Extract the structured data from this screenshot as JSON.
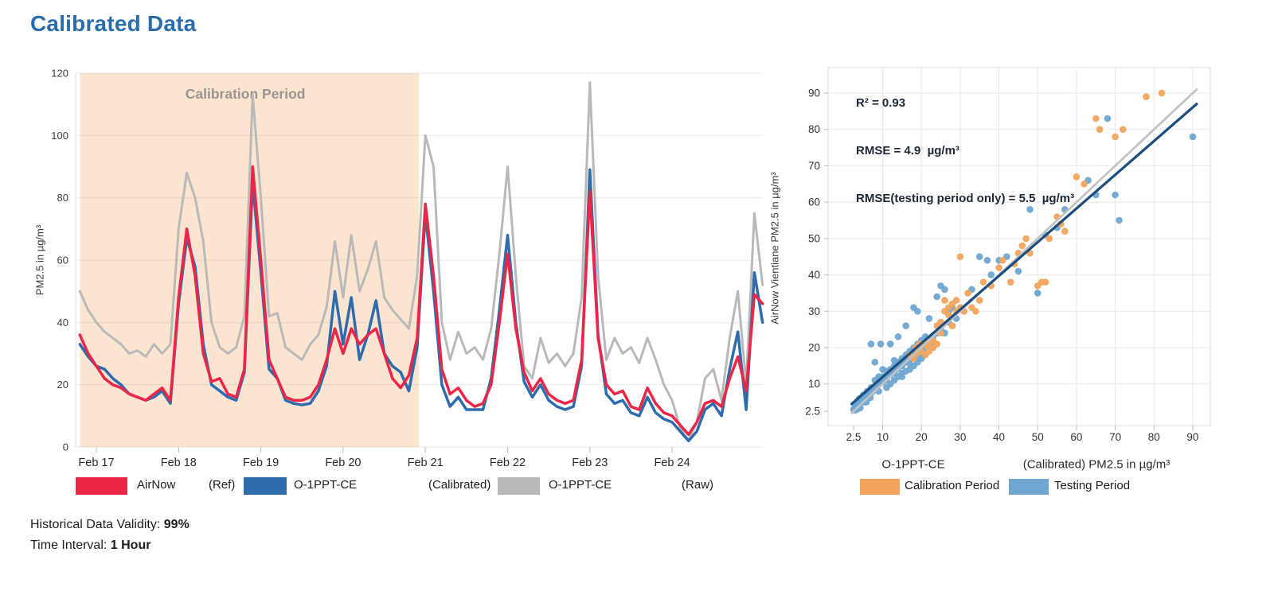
{
  "page": {
    "title": "Calibrated Data"
  },
  "footer": {
    "validity_label": "Historical Data Validity: ",
    "validity_value": "99%",
    "interval_label": "Time Interval: ",
    "interval_value": "1 Hour"
  },
  "legends": {
    "timeseries": {
      "items": [
        {
          "key": "airnow",
          "label": "AirNow",
          "qualifier": "(Ref)",
          "color": "#ed2648"
        },
        {
          "key": "calibrated",
          "label": "O-1PPT-CE",
          "qualifier": "(Calibrated)",
          "color": "#2e6cae"
        },
        {
          "key": "raw",
          "label": "O-1PPT-CE",
          "qualifier": "(Raw)",
          "color": "#b9b9b9"
        }
      ]
    },
    "scatter": {
      "items": [
        {
          "key": "calibration",
          "label": "Calibration Period",
          "color": "#f3a55d"
        },
        {
          "key": "testing",
          "label": "Testing Period",
          "color": "#6fa7d2"
        }
      ]
    }
  },
  "chart_data": [
    {
      "type": "line",
      "title": "",
      "annotation": "Calibration Period",
      "ylabel": "PM2.5 in µg/m³",
      "ylim": [
        0,
        120
      ],
      "yticks": [
        0,
        20,
        40,
        60,
        80,
        100,
        120
      ],
      "xtick_labels": [
        "Feb 17",
        "Feb 18",
        "Feb 19",
        "Feb 20",
        "Feb 21",
        "Feb 22",
        "Feb 23",
        "Feb 24"
      ],
      "xtick_days": [
        0,
        1,
        2,
        3,
        4,
        5,
        6,
        7
      ],
      "x_start_days": -0.2,
      "x_step_days": 0.1,
      "calibration_shade_days": [
        -0.2,
        3.92
      ],
      "shade_color": "#fbe5d1",
      "annotation_color": "#9b958e",
      "grid": true,
      "legend_position": "bottom",
      "series": [
        {
          "key": "raw",
          "name": "O-1PPT-CE (Raw)",
          "color": "#b9b9b9",
          "width": 3,
          "values": [
            50,
            44,
            40,
            37,
            35,
            33,
            30,
            31,
            29,
            33,
            30,
            33,
            70,
            88,
            80,
            66,
            40,
            32,
            30,
            32,
            42,
            113,
            80,
            42,
            43,
            32,
            30,
            28,
            33,
            36,
            45,
            66,
            48,
            68,
            50,
            57,
            66,
            48,
            44,
            41,
            38,
            55,
            100,
            90,
            40,
            28,
            37,
            30,
            32,
            28,
            38,
            62,
            90,
            55,
            26,
            22,
            35,
            27,
            30,
            26,
            30,
            48,
            117,
            55,
            28,
            35,
            30,
            32,
            27,
            35,
            28,
            20,
            15,
            6,
            2,
            8,
            22,
            25,
            15,
            35,
            50,
            20,
            75,
            52
          ]
        },
        {
          "key": "calibrated",
          "name": "O-1PPT-CE (Calibrated)",
          "color": "#2e6cae",
          "width": 3.5,
          "values": [
            33,
            29,
            26,
            25,
            22,
            20,
            17,
            16,
            15,
            16,
            18,
            14,
            46,
            67,
            58,
            33,
            20,
            18,
            16,
            15,
            24,
            85,
            56,
            25,
            22,
            15,
            14,
            13.5,
            14,
            18,
            26,
            50,
            33,
            48,
            28,
            36,
            47,
            30,
            26,
            24,
            18,
            32,
            75,
            50,
            20,
            13,
            16,
            12,
            12,
            12,
            22,
            44,
            68,
            40,
            21,
            16,
            20,
            15,
            13,
            12,
            13,
            26,
            89,
            36,
            17,
            14,
            15,
            11,
            10,
            16,
            11,
            9,
            8,
            5,
            2,
            5,
            12,
            14,
            10,
            25,
            37,
            12,
            56,
            40
          ]
        },
        {
          "key": "airnow",
          "name": "AirNow (Ref)",
          "color": "#ed2648",
          "width": 3.5,
          "values": [
            36,
            30,
            26,
            22,
            20,
            19,
            17,
            16,
            15,
            17,
            19,
            15,
            48,
            70,
            55,
            30,
            21,
            22,
            17,
            16,
            25,
            90,
            60,
            28,
            22,
            16,
            15,
            15,
            16,
            20,
            28,
            38,
            30,
            38,
            33,
            36,
            38,
            30,
            22,
            19,
            23,
            35,
            78,
            55,
            25,
            17,
            19,
            15,
            13,
            14,
            20,
            40,
            62,
            38,
            24,
            18,
            22,
            17,
            15,
            14,
            15,
            28,
            82,
            35,
            20,
            17,
            18,
            13,
            12,
            19,
            14,
            11,
            10,
            7,
            4,
            8,
            14,
            15,
            13,
            22,
            29,
            18,
            49,
            46
          ]
        }
      ]
    },
    {
      "type": "scatter",
      "stats": [
        "R² = 0.93",
        "RMSE = 4.9  µg/m³",
        "RMSE(testing period only) = 5.5  µg/m³"
      ],
      "ylabel": "AirNow Vientiane PM2.5 in µg/m³",
      "xlabel_left": "O-1PPT-CE",
      "xlabel_right": "(Calibrated) PM2.5 in µg/m³",
      "tick_labels": [
        "2.5",
        "10",
        "20",
        "30",
        "40",
        "50",
        "60",
        "70",
        "80",
        "90"
      ],
      "tick_values": [
        2.5,
        10,
        20,
        30,
        40,
        50,
        60,
        70,
        80,
        90
      ],
      "xlim": [
        -4,
        94
      ],
      "ylim": [
        -1.5,
        97
      ],
      "grid": true,
      "lines": [
        {
          "key": "identity",
          "name": "1:1 line",
          "color": "#c3c3c3",
          "width": 2.8,
          "points": [
            [
              2,
              2
            ],
            [
              91,
              91
            ]
          ]
        },
        {
          "key": "regression",
          "name": "regression line",
          "color": "#1c4e7f",
          "width": 3.2,
          "points": [
            [
              2,
              4.5
            ],
            [
              91,
              87
            ]
          ]
        }
      ],
      "series": [
        {
          "key": "testing",
          "name": "Testing Period",
          "color": "#6fa7d2",
          "points": [
            [
              2.5,
              3
            ],
            [
              2.6,
              2.8
            ],
            [
              2.8,
              3.5
            ],
            [
              3,
              2.8
            ],
            [
              3,
              4.2
            ],
            [
              3.2,
              3.6
            ],
            [
              3.4,
              3.1
            ],
            [
              3.5,
              4.8
            ],
            [
              4,
              4
            ],
            [
              4,
              6
            ],
            [
              4.2,
              3.4
            ],
            [
              4.5,
              5.2
            ],
            [
              5,
              5
            ],
            [
              5,
              7
            ],
            [
              5.5,
              6
            ],
            [
              5.8,
              5
            ],
            [
              6,
              6.5
            ],
            [
              6,
              8
            ],
            [
              6.5,
              7
            ],
            [
              6.8,
              6.2
            ],
            [
              7,
              7.5
            ],
            [
              7,
              9
            ],
            [
              7,
              21
            ],
            [
              7.5,
              8
            ],
            [
              8,
              9
            ],
            [
              8,
              11
            ],
            [
              8,
              16
            ],
            [
              8.5,
              10
            ],
            [
              9,
              8
            ],
            [
              9,
              10
            ],
            [
              9,
              12
            ],
            [
              9.5,
              21
            ],
            [
              10,
              10.5
            ],
            [
              10,
              12
            ],
            [
              10,
              14
            ],
            [
              10.5,
              11
            ],
            [
              11,
              9
            ],
            [
              11,
              11
            ],
            [
              11,
              12
            ],
            [
              11,
              13.5
            ],
            [
              11.5,
              13
            ],
            [
              12,
              10
            ],
            [
              12,
              12.5
            ],
            [
              12,
              14
            ],
            [
              12,
              21
            ],
            [
              12.5,
              13
            ],
            [
              13,
              11
            ],
            [
              13,
              13
            ],
            [
              13,
              15
            ],
            [
              13,
              16.5
            ],
            [
              13.5,
              14
            ],
            [
              14,
              12
            ],
            [
              14,
              14.5
            ],
            [
              14,
              16
            ],
            [
              14,
              23
            ],
            [
              14.5,
              15
            ],
            [
              15,
              12
            ],
            [
              15,
              13
            ],
            [
              15,
              15
            ],
            [
              15,
              17
            ],
            [
              15.5,
              16
            ],
            [
              16,
              13.5
            ],
            [
              16,
              16
            ],
            [
              16,
              18
            ],
            [
              16,
              26
            ],
            [
              16.5,
              17
            ],
            [
              17,
              14
            ],
            [
              17,
              15.5
            ],
            [
              17,
              17
            ],
            [
              17,
              19
            ],
            [
              17.5,
              18
            ],
            [
              18,
              15
            ],
            [
              18,
              18
            ],
            [
              18,
              20
            ],
            [
              18,
              31
            ],
            [
              18.5,
              17
            ],
            [
              19,
              16
            ],
            [
              19,
              19
            ],
            [
              19,
              21
            ],
            [
              19,
              30
            ],
            [
              19.5,
              18.5
            ],
            [
              20,
              17
            ],
            [
              20,
              20
            ],
            [
              20,
              22
            ],
            [
              20.5,
              19
            ],
            [
              21,
              18
            ],
            [
              21,
              21
            ],
            [
              21,
              23
            ],
            [
              22,
              22
            ],
            [
              22,
              28
            ],
            [
              22.5,
              21
            ],
            [
              23,
              20
            ],
            [
              23,
              23
            ],
            [
              24,
              24
            ],
            [
              24,
              34
            ],
            [
              25,
              25
            ],
            [
              25,
              37
            ],
            [
              26,
              24
            ],
            [
              26,
              36
            ],
            [
              27,
              27
            ],
            [
              27,
              30
            ],
            [
              28,
              26
            ],
            [
              28,
              31
            ],
            [
              29,
              28
            ],
            [
              30,
              31
            ],
            [
              31,
              30
            ],
            [
              33,
              36
            ],
            [
              35,
              45
            ],
            [
              37,
              44
            ],
            [
              38,
              40
            ],
            [
              40,
              44
            ],
            [
              42,
              45
            ],
            [
              45,
              41
            ],
            [
              48,
              58
            ],
            [
              50,
              35
            ],
            [
              52,
              51
            ],
            [
              55,
              53
            ],
            [
              57,
              58
            ],
            [
              63,
              66
            ],
            [
              65,
              62
            ],
            [
              68,
              83
            ],
            [
              70,
              62
            ],
            [
              71,
              55
            ],
            [
              90,
              78
            ]
          ]
        },
        {
          "key": "calibration",
          "name": "Calibration Period",
          "color": "#f3a55d",
          "points": [
            [
              17,
              18
            ],
            [
              18,
              17
            ],
            [
              18.5,
              20
            ],
            [
              19,
              18.5
            ],
            [
              19.5,
              21
            ],
            [
              20,
              19
            ],
            [
              20.5,
              21
            ],
            [
              21,
              18
            ],
            [
              21.5,
              20.5
            ],
            [
              22,
              19
            ],
            [
              22,
              21.5
            ],
            [
              23,
              20
            ],
            [
              23,
              22
            ],
            [
              24,
              21
            ],
            [
              24,
              26
            ],
            [
              25,
              24
            ],
            [
              25,
              27
            ],
            [
              26,
              30
            ],
            [
              26,
              33
            ],
            [
              27,
              31
            ],
            [
              27,
              29
            ],
            [
              28,
              32
            ],
            [
              28,
              26
            ],
            [
              29,
              30
            ],
            [
              29,
              33
            ],
            [
              30,
              45
            ],
            [
              30,
              31
            ],
            [
              31,
              30
            ],
            [
              32,
              35
            ],
            [
              33,
              31
            ],
            [
              34,
              30
            ],
            [
              35,
              33
            ],
            [
              36,
              38
            ],
            [
              38,
              37
            ],
            [
              40,
              42
            ],
            [
              41,
              44
            ],
            [
              43,
              38
            ],
            [
              44,
              43
            ],
            [
              45,
              46
            ],
            [
              46,
              48
            ],
            [
              47,
              50
            ],
            [
              48,
              46
            ],
            [
              50,
              37
            ],
            [
              51,
              38
            ],
            [
              52,
              38
            ],
            [
              53,
              50
            ],
            [
              55,
              56
            ],
            [
              56,
              54
            ],
            [
              57,
              52
            ],
            [
              60,
              67
            ],
            [
              62,
              65
            ],
            [
              65,
              83
            ],
            [
              66,
              80
            ],
            [
              70,
              78
            ],
            [
              72,
              80
            ],
            [
              78,
              89
            ],
            [
              82,
              90
            ]
          ]
        }
      ]
    }
  ]
}
